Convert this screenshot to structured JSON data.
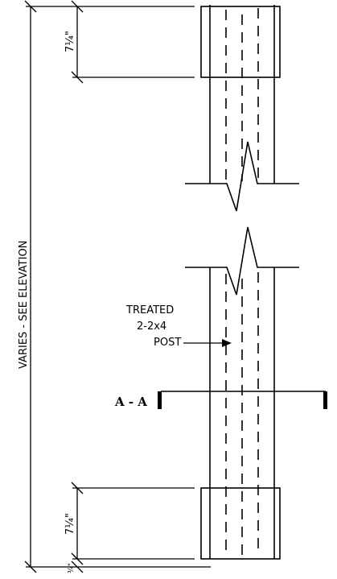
{
  "labels": {
    "overall_dimension": "VARIES - SEE ELEVATION",
    "top_dimension": "7¼\"",
    "bottom_dimension": "7¼\"",
    "base_dimension": "¾\"",
    "post_line1": "TREATED",
    "post_line2": "2-2x4",
    "post_line3": "POST",
    "section": "A - A"
  }
}
